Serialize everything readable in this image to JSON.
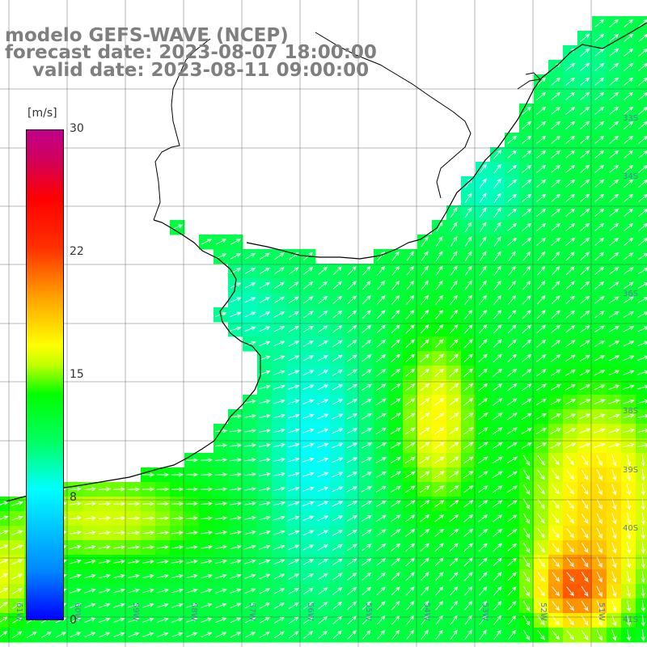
{
  "title": {
    "line1": "modelo GEFS-WAVE (NCEP)",
    "line2": "forecast date: 2023-08-07 18:00:00",
    "line3": "valid date: 2023-08-11 09:00:00"
  },
  "colorbar": {
    "unit": "[m/s]",
    "ticks": [
      "30",
      "22",
      "15",
      "8",
      "0"
    ],
    "tick_values": [
      30,
      22,
      15,
      8,
      0
    ],
    "min": 0,
    "max": 30,
    "colors": [
      "#0000ff",
      "#00ffff",
      "#00ff00",
      "#ffff00",
      "#ff0000",
      "#c0008c"
    ]
  },
  "grid": {
    "lat_labels": [
      "32S",
      "33S",
      "34S",
      "35S",
      "36S",
      "37S",
      "38S",
      "39S",
      "40S",
      "41S"
    ],
    "lon_labels": [
      "61W",
      "60W",
      "59W",
      "58W",
      "57W",
      "56W",
      "55W",
      "54W",
      "53W",
      "52W",
      "51W"
    ]
  },
  "field": {
    "variable": "wind speed",
    "units": "m/s",
    "background": "#ffffff",
    "land": "#ffffff",
    "coast_color": "#000000",
    "arrow_color": "#ffffff"
  }
}
